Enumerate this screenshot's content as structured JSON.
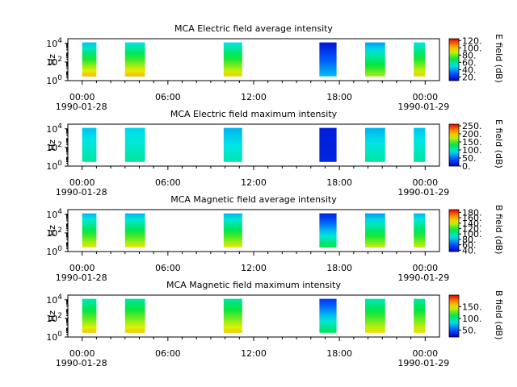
{
  "chart_data": [
    {
      "type": "heatmap",
      "title": "MCA  Electric field average intensity",
      "ylabel": "Hz",
      "colorbar_label": "E field (dB)",
      "colorbar_ticks": [
        "20.",
        "40.",
        "60.",
        "80.",
        "100.",
        "120."
      ],
      "colorbar_range": [
        10,
        125
      ],
      "x_ticks": [
        "00:00",
        "06:00",
        "12:00",
        "18:00",
        "00:00"
      ],
      "x_dates": [
        "1990-01-28",
        "1990-01-29"
      ],
      "xlim_hours": [
        -1,
        25
      ],
      "y_ticks": [
        "10^0",
        "10^2",
        "10^4"
      ],
      "ylim_log10": [
        0,
        4.5
      ],
      "scale": "log",
      "segments": [
        {
          "start": 0.0,
          "end": 1.0,
          "low_db": 100,
          "high_db": 45
        },
        {
          "start": 3.0,
          "end": 4.4,
          "low_db": 100,
          "high_db": 50
        },
        {
          "start": 9.9,
          "end": 11.2,
          "low_db": 95,
          "high_db": 50
        },
        {
          "start": 16.6,
          "end": 17.8,
          "low_db": 45,
          "high_db": 15
        },
        {
          "start": 19.8,
          "end": 21.2,
          "low_db": 85,
          "high_db": 40
        },
        {
          "start": 23.2,
          "end": 24.0,
          "low_db": 95,
          "high_db": 50
        }
      ]
    },
    {
      "type": "heatmap",
      "title": "MCA  Electric field maximum intensity",
      "ylabel": "Hz",
      "colorbar_label": "E field (dB)",
      "colorbar_ticks": [
        "0.",
        "50.",
        "100.",
        "150.",
        "200.",
        "250."
      ],
      "colorbar_range": [
        0,
        260
      ],
      "x_ticks": [
        "00:00",
        "06:00",
        "12:00",
        "18:00",
        "00:00"
      ],
      "x_dates": [
        "1990-01-28",
        "1990-01-29"
      ],
      "xlim_hours": [
        -1,
        25
      ],
      "y_ticks": [
        "10^0",
        "10^2",
        "10^4"
      ],
      "ylim_log10": [
        0,
        4.5
      ],
      "scale": "log",
      "segments": [
        {
          "start": 0.0,
          "end": 1.0,
          "low_db": 110,
          "high_db": 80
        },
        {
          "start": 3.0,
          "end": 4.4,
          "low_db": 110,
          "high_db": 85
        },
        {
          "start": 9.9,
          "end": 11.2,
          "low_db": 105,
          "high_db": 75
        },
        {
          "start": 16.6,
          "end": 17.8,
          "low_db": 20,
          "high_db": 15
        },
        {
          "start": 19.8,
          "end": 21.2,
          "low_db": 110,
          "high_db": 75
        },
        {
          "start": 23.2,
          "end": 24.0,
          "low_db": 110,
          "high_db": 80
        }
      ]
    },
    {
      "type": "heatmap",
      "title": "MCA  Magnetic field average intensity",
      "ylabel": "Hz",
      "colorbar_label": "B field (dB)",
      "colorbar_ticks": [
        "40.",
        "60.",
        "80.",
        "100.",
        "120.",
        "140.",
        "160.",
        "180."
      ],
      "colorbar_range": [
        35,
        190
      ],
      "x_ticks": [
        "00:00",
        "06:00",
        "12:00",
        "18:00",
        "00:00"
      ],
      "x_dates": [
        "1990-01-28",
        "1990-01-29"
      ],
      "xlim_hours": [
        -1,
        25
      ],
      "y_ticks": [
        "10^0",
        "10^2",
        "10^4"
      ],
      "ylim_log10": [
        0,
        4.5
      ],
      "scale": "log",
      "segments": [
        {
          "start": 0.0,
          "end": 1.0,
          "low_db": 145,
          "high_db": 80
        },
        {
          "start": 3.0,
          "end": 4.4,
          "low_db": 145,
          "high_db": 80
        },
        {
          "start": 9.9,
          "end": 11.2,
          "low_db": 145,
          "high_db": 80
        },
        {
          "start": 16.6,
          "end": 17.8,
          "low_db": 115,
          "high_db": 45
        },
        {
          "start": 19.8,
          "end": 21.2,
          "low_db": 140,
          "high_db": 75
        },
        {
          "start": 23.2,
          "end": 24.0,
          "low_db": 140,
          "high_db": 80
        }
      ]
    },
    {
      "type": "heatmap",
      "title": "MCA  Magnetic field maximum intensity",
      "ylabel": "Hz",
      "colorbar_label": "B field (dB)",
      "colorbar_ticks": [
        "50.",
        "100.",
        "150."
      ],
      "colorbar_range": [
        20,
        200
      ],
      "x_ticks": [
        "00:00",
        "06:00",
        "12:00",
        "18:00",
        "00:00"
      ],
      "x_dates": [
        "1990-01-28",
        "1990-01-29"
      ],
      "xlim_hours": [
        -1,
        25
      ],
      "y_ticks": [
        "10^0",
        "10^2",
        "10^4"
      ],
      "ylim_log10": [
        0,
        4.5
      ],
      "scale": "log",
      "segments": [
        {
          "start": 0.0,
          "end": 1.0,
          "low_db": 155,
          "high_db": 90
        },
        {
          "start": 3.0,
          "end": 4.4,
          "low_db": 155,
          "high_db": 95
        },
        {
          "start": 9.9,
          "end": 11.2,
          "low_db": 155,
          "high_db": 95
        },
        {
          "start": 16.6,
          "end": 17.8,
          "low_db": 110,
          "high_db": 40
        },
        {
          "start": 19.8,
          "end": 21.2,
          "low_db": 150,
          "high_db": 90
        },
        {
          "start": 23.2,
          "end": 24.0,
          "low_db": 150,
          "high_db": 95
        }
      ]
    }
  ]
}
